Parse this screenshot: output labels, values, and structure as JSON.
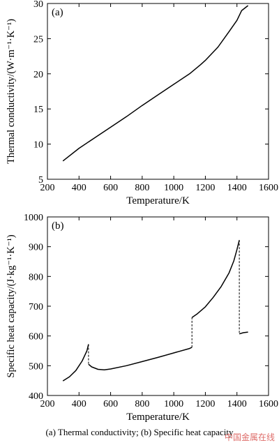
{
  "caption": "(a) Thermal conductivity; (b) Specific heat capacity",
  "watermark": "中国金属在线",
  "chart_data": [
    {
      "type": "line",
      "panel": "(a)",
      "xlabel": "Temperature/K",
      "ylabel": "Thermal conductivity/(W·m⁻¹·K⁻¹)",
      "xlim": [
        200,
        1600
      ],
      "ylim": [
        5,
        30
      ],
      "xticks": [
        200,
        400,
        600,
        800,
        1000,
        1200,
        1400,
        1600
      ],
      "yticks": [
        5,
        10,
        15,
        20,
        25,
        30
      ],
      "grid": false,
      "series": [
        {
          "x": [
            298,
            400,
            500,
            600,
            700,
            800,
            900,
            1000,
            1100,
            1170,
            1200,
            1280,
            1350,
            1400,
            1430,
            1470
          ],
          "y": [
            7.6,
            9.4,
            10.9,
            12.4,
            13.9,
            15.5,
            17.0,
            18.5,
            20.0,
            21.3,
            21.9,
            23.8,
            26.0,
            27.6,
            29.0,
            29.7
          ],
          "style": "solid"
        }
      ]
    },
    {
      "type": "line",
      "panel": "(b)",
      "xlabel": "Temperature/K",
      "ylabel": "Specific heat capacity/(J·kg⁻¹·K⁻¹)",
      "xlim": [
        200,
        1600
      ],
      "ylim": [
        400,
        1000
      ],
      "xticks": [
        200,
        400,
        600,
        800,
        1000,
        1200,
        1400,
        1600
      ],
      "yticks": [
        400,
        500,
        600,
        700,
        800,
        900,
        1000
      ],
      "grid": false,
      "series": [
        {
          "x": [
            298,
            340,
            380,
            420,
            450,
            460
          ],
          "y": [
            449,
            463,
            484,
            516,
            550,
            572
          ],
          "style": "solid"
        },
        {
          "x": [
            460,
            460
          ],
          "y": [
            572,
            505
          ],
          "style": "dashed"
        },
        {
          "x": [
            460,
            480,
            520,
            560,
            600,
            700,
            800,
            900,
            1000,
            1100,
            1115
          ],
          "y": [
            505,
            496,
            488,
            486,
            489,
            500,
            514,
            528,
            543,
            558,
            562
          ],
          "style": "solid"
        },
        {
          "x": [
            1115,
            1115
          ],
          "y": [
            562,
            662
          ],
          "style": "dashed"
        },
        {
          "x": [
            1115,
            1150,
            1200,
            1250,
            1300,
            1350,
            1380,
            1400,
            1415
          ],
          "y": [
            662,
            675,
            698,
            730,
            766,
            812,
            852,
            890,
            922
          ],
          "style": "solid"
        },
        {
          "x": [
            1415,
            1415
          ],
          "y": [
            922,
            607
          ],
          "style": "dashed"
        },
        {
          "x": [
            1415,
            1440,
            1470
          ],
          "y": [
            607,
            611,
            613
          ],
          "style": "solid"
        }
      ]
    }
  ]
}
